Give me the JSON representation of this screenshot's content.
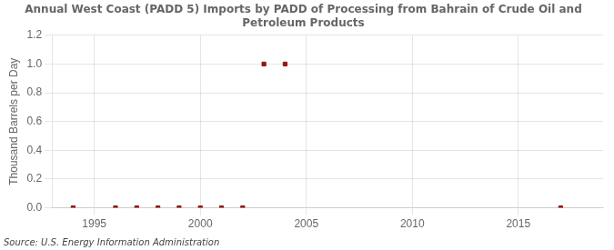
{
  "chart_data": {
    "type": "scatter",
    "title": "Annual West Coast (PADD 5) Imports by PADD of Processing from Bahrain of Crude Oil and\nPetroleum Products",
    "y_label": "Thousand Barrels per Day",
    "annotation": "Source: U.S. Energy Information Administration",
    "x": [
      1994,
      1996,
      1997,
      1998,
      1999,
      2000,
      2001,
      2002,
      2003,
      2004,
      2017
    ],
    "values": [
      0.0,
      0.0,
      0.0,
      0.0,
      0.0,
      0.0,
      0.0,
      0.0,
      1.0,
      1.0,
      0.0
    ],
    "color": "#8b1a1a",
    "marker": "square",
    "xlim": [
      1993,
      2019
    ],
    "xticks": [
      1995,
      2000,
      2005,
      2010,
      2015
    ],
    "ylim": [
      0.0,
      1.2
    ],
    "yticks": [
      {
        "value": 0.0,
        "label": "0.0"
      },
      {
        "value": 0.2,
        "label": "0.2"
      },
      {
        "value": 0.4,
        "label": "0.4"
      },
      {
        "value": 0.6,
        "label": "0.6"
      },
      {
        "value": 0.8,
        "label": "0.8"
      },
      {
        "value": 1.0,
        "label": "1.0"
      },
      {
        "value": 1.2,
        "label": "1.2"
      }
    ],
    "grid": true
  }
}
